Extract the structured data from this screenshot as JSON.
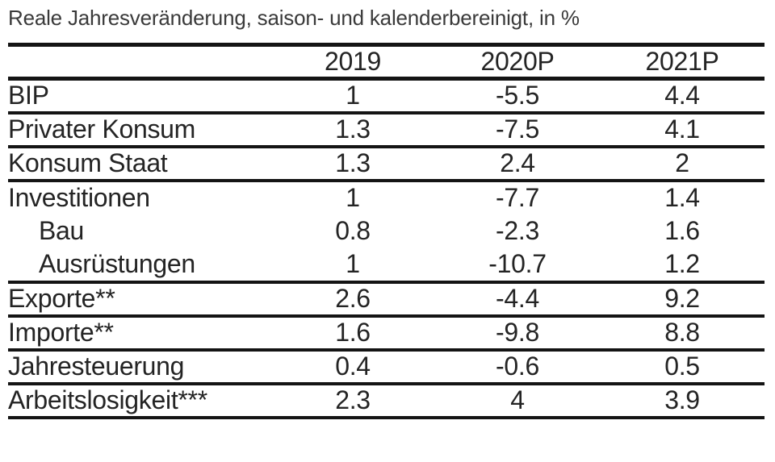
{
  "title": "Reale Jahresveränderung, saison- und kalenderbereinigt, in %",
  "table": {
    "columns": [
      "2019",
      "2020P",
      "2021P"
    ],
    "rows": [
      {
        "label": "BIP",
        "values": [
          "1",
          "-5.5",
          "4.4"
        ],
        "indent": false,
        "ruled": true
      },
      {
        "label": "Privater Konsum",
        "values": [
          "1.3",
          "-7.5",
          "4.1"
        ],
        "indent": false,
        "ruled": true
      },
      {
        "label": "Konsum Staat",
        "values": [
          "1.3",
          "2.4",
          "2"
        ],
        "indent": false,
        "ruled": true
      },
      {
        "label": "Investitionen",
        "values": [
          "1",
          "-7.7",
          "1.4"
        ],
        "indent": false,
        "ruled": false
      },
      {
        "label": "Bau",
        "values": [
          "0.8",
          "-2.3",
          "1.6"
        ],
        "indent": true,
        "ruled": false
      },
      {
        "label": "Ausrüstungen",
        "values": [
          "1",
          "-10.7",
          "1.2"
        ],
        "indent": true,
        "ruled": true
      },
      {
        "label": "Exporte**",
        "values": [
          "2.6",
          "-4.4",
          "9.2"
        ],
        "indent": false,
        "ruled": true
      },
      {
        "label": "Importe**",
        "values": [
          "1.6",
          "-9.8",
          "8.8"
        ],
        "indent": false,
        "ruled": true
      },
      {
        "label": "Jahresteuerung",
        "values": [
          "0.4",
          "-0.6",
          "0.5"
        ],
        "indent": false,
        "ruled": true
      },
      {
        "label": "Arbeitslosigkeit***",
        "values": [
          "2.3",
          "4",
          "3.9"
        ],
        "indent": false,
        "ruled": true
      }
    ]
  },
  "chart_data": {
    "type": "table",
    "title": "Reale Jahresveränderung, saison- und kalenderbereinigt, in %",
    "columns": [
      "2019",
      "2020P",
      "2021P"
    ],
    "rows": [
      {
        "label": "BIP",
        "values": [
          1,
          -5.5,
          4.4
        ]
      },
      {
        "label": "Privater Konsum",
        "values": [
          1.3,
          -7.5,
          4.1
        ]
      },
      {
        "label": "Konsum Staat",
        "values": [
          1.3,
          2.4,
          2
        ]
      },
      {
        "label": "Investitionen",
        "values": [
          1,
          -7.7,
          1.4
        ]
      },
      {
        "label": "Bau",
        "values": [
          0.8,
          -2.3,
          1.6
        ]
      },
      {
        "label": "Ausrüstungen",
        "values": [
          1,
          -10.7,
          1.2
        ]
      },
      {
        "label": "Exporte**",
        "values": [
          2.6,
          -4.4,
          9.2
        ]
      },
      {
        "label": "Importe**",
        "values": [
          1.6,
          -9.8,
          8.8
        ]
      },
      {
        "label": "Jahresteuerung",
        "values": [
          0.4,
          -0.6,
          0.5
        ]
      },
      {
        "label": "Arbeitslosigkeit***",
        "values": [
          2.3,
          4,
          3.9
        ]
      }
    ]
  },
  "colors": {
    "text": "#242424",
    "rule": "#141414",
    "background": "#ffffff"
  }
}
